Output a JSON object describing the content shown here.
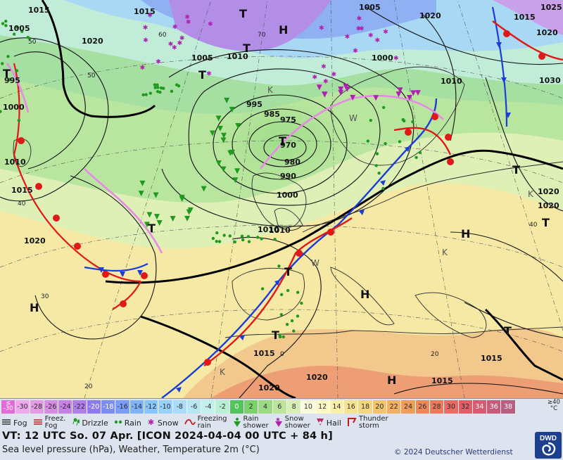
{
  "map": {
    "pressure_labels": [
      "1015",
      "1005",
      "1020",
      "1015",
      "1005",
      "1010",
      "995",
      "1000",
      "1010",
      "1015",
      "1020",
      "995",
      "985",
      "975",
      "970",
      "980",
      "990",
      "1000",
      "1010",
      "1010",
      "1000",
      "1005",
      "1015",
      "1020",
      "1025",
      "1030",
      "1020",
      "1020",
      "1020",
      "1010",
      "1015",
      "1015",
      "1020",
      "1015",
      "1020"
    ],
    "high_label": "H",
    "low_label": "T",
    "warm_label": "W",
    "cold_label": "K",
    "temp_labels": [
      "60",
      "50",
      "40",
      "30",
      "20",
      "50",
      "70",
      "40",
      "0",
      "20"
    ]
  },
  "legend": {
    "scale": [
      {
        "label": "≤\n-30",
        "color": "#e36ad8"
      },
      {
        "label": "-30",
        "color": "#f0a8ee"
      },
      {
        "label": "-28",
        "color": "#e49ae6"
      },
      {
        "label": "-26",
        "color": "#d78ce4"
      },
      {
        "label": "-24",
        "color": "#c680e6"
      },
      {
        "label": "-22",
        "color": "#b07ee8"
      },
      {
        "label": "-20",
        "color": "#8c7af0"
      },
      {
        "label": "-18",
        "color": "#7d8cf4"
      },
      {
        "label": "-16",
        "color": "#7a9ef8"
      },
      {
        "label": "-14",
        "color": "#7eb2fb"
      },
      {
        "label": "-12",
        "color": "#88c4fd"
      },
      {
        "label": "-10",
        "color": "#98d2fe"
      },
      {
        "label": "-8",
        "color": "#a8dcfa"
      },
      {
        "label": "-6",
        "color": "#b6e8f4"
      },
      {
        "label": "-4",
        "color": "#c2f0ec"
      },
      {
        "label": "-2",
        "color": "#b8f0d4"
      },
      {
        "label": "0",
        "color": "#4fc55a"
      },
      {
        "label": "2",
        "color": "#7ad16c"
      },
      {
        "label": "4",
        "color": "#9ada82"
      },
      {
        "label": "6",
        "color": "#bce59a"
      },
      {
        "label": "8",
        "color": "#d8efb8"
      },
      {
        "label": "10",
        "color": "#fafcdc"
      },
      {
        "label": "12",
        "color": "#fdf8c4"
      },
      {
        "label": "14",
        "color": "#fbf0a8"
      },
      {
        "label": "16",
        "color": "#f8e490"
      },
      {
        "label": "18",
        "color": "#f6d67c"
      },
      {
        "label": "20",
        "color": "#f4c46c"
      },
      {
        "label": "22",
        "color": "#f2b062"
      },
      {
        "label": "24",
        "color": "#f09c5a"
      },
      {
        "label": "26",
        "color": "#ee8856"
      },
      {
        "label": "28",
        "color": "#ec7a5a"
      },
      {
        "label": "30",
        "color": "#e86c62"
      },
      {
        "label": "32",
        "color": "#e0606a"
      },
      {
        "label": "34",
        "color": "#d55a72"
      },
      {
        "label": "36",
        "color": "#c85a7a"
      },
      {
        "label": "38",
        "color": "#b85e80"
      }
    ],
    "unit": "≥40\n°C",
    "symbols": [
      {
        "icon": "fog-icon",
        "label": "Fog"
      },
      {
        "icon": "freezing-fog-icon",
        "label": "Freez.\nFog"
      },
      {
        "icon": "drizzle-icon",
        "label": "Drizzle"
      },
      {
        "icon": "rain-icon",
        "label": "Rain"
      },
      {
        "icon": "snow-icon",
        "label": "Snow"
      },
      {
        "icon": "freezing-rain-icon",
        "label": "Freezing\nrain"
      },
      {
        "icon": "rain-shower-icon",
        "label": "Rain\nshower"
      },
      {
        "icon": "snow-shower-icon",
        "label": "Snow\nshower"
      },
      {
        "icon": "hail-icon",
        "label": "Hail"
      },
      {
        "icon": "thunderstorm-icon",
        "label": "Thunder\nstorm"
      }
    ],
    "title": "VT: 12 UTC So.  07 Apr. [ICON 2024-04-04  00 UTC + 84 h]",
    "subtitle": "Sea level pressure (hPa), Weather, Temperature 2m (°C)",
    "copyright": "© 2024 Deutscher Wetterdienst",
    "logo_text": "DWD"
  }
}
